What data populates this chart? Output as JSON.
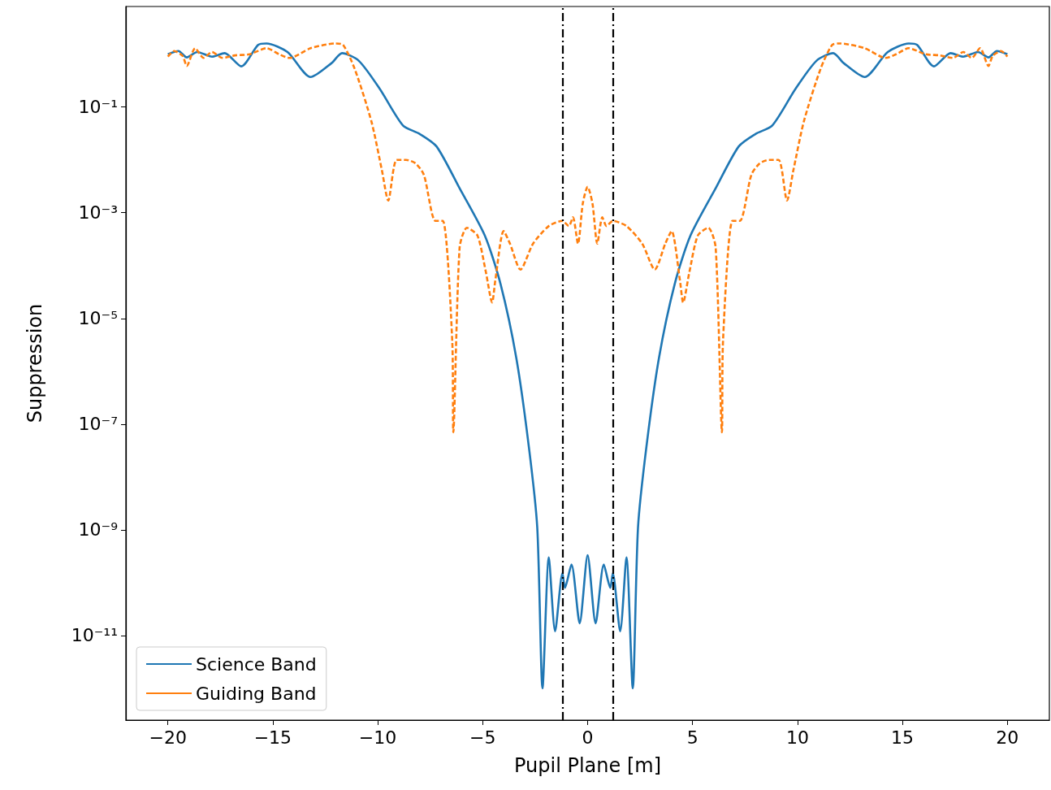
{
  "chart_data": {
    "type": "line",
    "xlabel": "Pupil Plane [m]",
    "ylabel": "Suppression",
    "log": "y",
    "legend": "bottom left",
    "grid": false,
    "marker": "none",
    "xlim": [
      -22,
      22
    ],
    "ylim": [
      2.5e-13,
      8
    ],
    "xticks": [
      {
        "value": -20,
        "label": "−20"
      },
      {
        "value": -15,
        "label": "−15"
      },
      {
        "value": -10,
        "label": "−10"
      },
      {
        "value": -5,
        "label": "−5"
      },
      0,
      5,
      10,
      15,
      20
    ],
    "yticks": [
      {
        "value": 0.1,
        "label": "10⁻¹"
      },
      {
        "value": 0.001,
        "label": "10⁻³"
      },
      {
        "value": 1e-05,
        "label": "10⁻⁵"
      },
      {
        "value": 1e-07,
        "label": "10⁻⁷"
      },
      {
        "value": 1e-09,
        "label": "10⁻⁹"
      },
      {
        "value": 1e-11,
        "label": "10⁻¹¹"
      }
    ],
    "ref_lines": [
      {
        "axis": "x",
        "value": -1.2,
        "color": "#000000",
        "line_style": "dashdot"
      },
      {
        "axis": "x",
        "value": 1.2,
        "color": "#000000",
        "line_style": "dashdot"
      }
    ],
    "series": [
      {
        "name": "Science Band",
        "color": "#1f77b4",
        "line_style": "solid",
        "x": [
          -20,
          -19.5,
          -19.1,
          -18.6,
          -17.9,
          -17.3,
          -16.5,
          -15.7,
          -15.3,
          -14.3,
          -13.2,
          -12.2,
          -11.7,
          -10.9,
          -9.9,
          -8.8,
          -8.0,
          -7.2,
          -6.1,
          -4.9,
          -4.15,
          -3.4,
          -2.8,
          -2.4,
          -2.15,
          -1.85,
          -1.55,
          -1.2,
          -1.08,
          -0.77,
          -0.38,
          0,
          0.38,
          0.77,
          1.08,
          1.2,
          1.55,
          1.85,
          2.15,
          2.4,
          2.8,
          3.4,
          4.15,
          4.9,
          6.1,
          7.2,
          8.0,
          8.8,
          9.9,
          10.9,
          11.7,
          12.2,
          13.2,
          14.3,
          15.3,
          15.7,
          16.5,
          17.3,
          17.9,
          18.6,
          19.1,
          19.5,
          20
        ],
        "values": [
          1.0,
          1.15,
          0.87,
          1.1,
          0.9,
          1.05,
          0.59,
          1.5,
          1.6,
          1.1,
          0.37,
          0.68,
          1.05,
          0.75,
          0.22,
          0.045,
          0.031,
          0.018,
          0.0029,
          0.00037,
          4.5e-05,
          1.8e-06,
          3.7e-08,
          1.1e-09,
          1e-12,
          3e-10,
          1.2e-11,
          1.5e-10,
          8e-11,
          2.2e-10,
          1.7e-11,
          3.3e-10,
          1.7e-11,
          2.2e-10,
          8e-11,
          1.5e-10,
          1.2e-11,
          3e-10,
          1e-12,
          1.1e-09,
          3.7e-08,
          1.8e-06,
          4.5e-05,
          0.00037,
          0.0029,
          0.018,
          0.031,
          0.045,
          0.22,
          0.75,
          1.05,
          0.68,
          0.37,
          1.1,
          1.6,
          1.5,
          0.59,
          1.05,
          0.9,
          1.1,
          0.87,
          1.15,
          1.0
        ]
      },
      {
        "name": "Guiding Band",
        "color": "#ff7f0e",
        "line_style": "dashed",
        "x": [
          -20,
          -19.7,
          -19.3,
          -19.1,
          -18.7,
          -18.3,
          -17.9,
          -17.4,
          -16.8,
          -16.1,
          -15.3,
          -14.7,
          -14.2,
          -13.2,
          -12.0,
          -11.65,
          -11.1,
          -10.3,
          -9.8,
          -9.5,
          -9.1,
          -8.65,
          -8.2,
          -7.8,
          -7.25,
          -6.9,
          -6.45,
          -6.4,
          -6.1,
          -5.75,
          -5.25,
          -4.85,
          -4.55,
          -4.4,
          -4.0,
          -3.7,
          -3.2,
          -2.6,
          -1.85,
          -1.2,
          -0.9,
          -0.7,
          -0.46,
          -0.23,
          0,
          0.23,
          0.46,
          0.7,
          0.9,
          1.2,
          1.85,
          2.6,
          3.2,
          3.7,
          4.0,
          4.4,
          4.55,
          4.85,
          5.25,
          5.75,
          6.1,
          6.4,
          6.45,
          6.9,
          7.25,
          7.8,
          8.2,
          8.65,
          9.1,
          9.5,
          9.8,
          10.3,
          11.1,
          11.65,
          12.0,
          13.2,
          14.2,
          14.7,
          15.3,
          16.1,
          16.8,
          17.4,
          17.9,
          18.3,
          18.7,
          19.1,
          19.3,
          19.7,
          20
        ],
        "values": [
          0.9,
          1.15,
          0.93,
          0.6,
          1.3,
          0.85,
          1.1,
          0.85,
          0.95,
          1.0,
          1.3,
          1.0,
          0.85,
          1.3,
          1.6,
          1.5,
          0.53,
          0.053,
          0.0063,
          0.0017,
          0.01,
          0.01,
          0.0086,
          0.0052,
          0.0007,
          0.0007,
          3.7e-06,
          7e-08,
          0.00022,
          0.00052,
          0.00037,
          7.6e-05,
          2e-05,
          5.2e-05,
          0.00045,
          0.00026,
          8.4e-05,
          0.00026,
          0.00056,
          0.0007,
          0.00056,
          0.00082,
          0.00026,
          0.0015,
          0.0031,
          0.0015,
          0.00026,
          0.00082,
          0.00056,
          0.0007,
          0.00056,
          0.00026,
          8.4e-05,
          0.00026,
          0.00045,
          5.2e-05,
          2e-05,
          7.6e-05,
          0.00037,
          0.00052,
          0.00022,
          7e-08,
          3.7e-06,
          0.0007,
          0.0007,
          0.0052,
          0.0086,
          0.01,
          0.01,
          0.0017,
          0.0063,
          0.053,
          0.53,
          1.5,
          1.6,
          1.3,
          0.85,
          1.0,
          1.3,
          1.0,
          0.95,
          0.85,
          1.1,
          0.85,
          1.3,
          0.6,
          0.93,
          1.15,
          0.9
        ]
      }
    ]
  }
}
